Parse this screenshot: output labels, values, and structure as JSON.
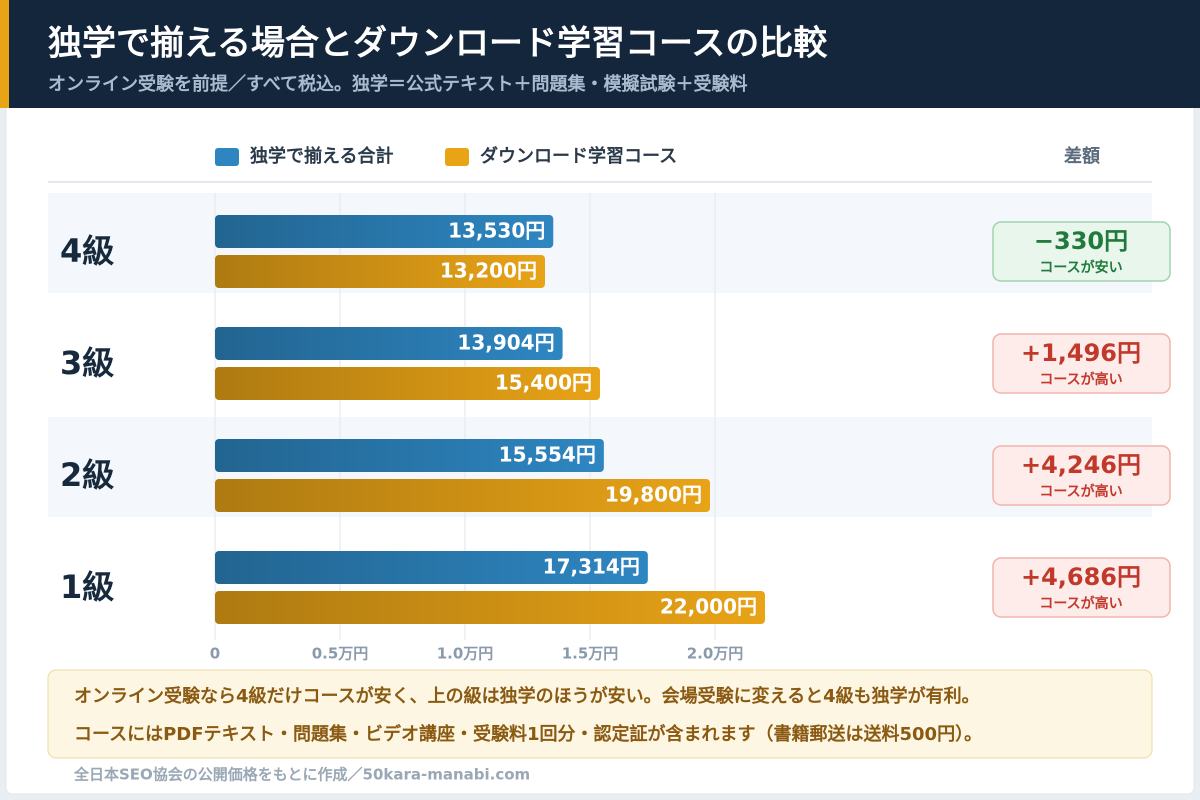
{
  "chart_data": {
    "type": "hbar",
    "title": "独学で揃える場合とダウンロード学習コースの比較",
    "subtitle": "オンライン受験を前提／すべて税込。独学＝公式テキスト＋問題集・模擬試験＋受験料",
    "categories": [
      "4級",
      "3級",
      "2級",
      "1級"
    ],
    "series": [
      {
        "name": "独学で揃える合計",
        "color": "#2e86c1",
        "values": [
          13530,
          13904,
          15554,
          17314
        ],
        "value_labels": [
          "13,530円",
          "13,904円",
          "15,554円",
          "17,314円"
        ]
      },
      {
        "name": "ダウンロード学習コース",
        "color": "#e8a317",
        "values": [
          13200,
          15400,
          19800,
          22000
        ],
        "value_labels": [
          "13,200円",
          "15,400円",
          "19,800円",
          "22,000円"
        ]
      }
    ],
    "xlim": [
      0,
      22000
    ],
    "xticks": [
      0,
      {
        "value": 5000,
        "label": "0.5万円"
      },
      {
        "value": 10000,
        "label": "1.0万円"
      },
      {
        "value": 15000,
        "label": "1.5万円"
      },
      {
        "value": 20000,
        "label": "2.0万円"
      }
    ],
    "grid": true,
    "difference": {
      "title": "差額",
      "values": [
        -330,
        1496,
        4246,
        4686
      ],
      "value_labels": [
        "−330円",
        "+1,496円",
        "+4,246円",
        "+4,686円"
      ],
      "notes": [
        "コースが安い",
        "コースが高い",
        "コースが高い",
        "コースが高い"
      ]
    },
    "notes": [
      "オンライン受験なら4級だけコースが安く、上の級は独学のほうが安い。会場受験に変えると4級も独学が有利。",
      "コースにはPDFテキスト・問題集・ビデオ講座・受験料1回分・認定証が含まれます（書籍郵送は送料500円）。"
    ],
    "source": "全日本SEO協会の公開価格をもとに作成／50kara-manabi.com"
  }
}
